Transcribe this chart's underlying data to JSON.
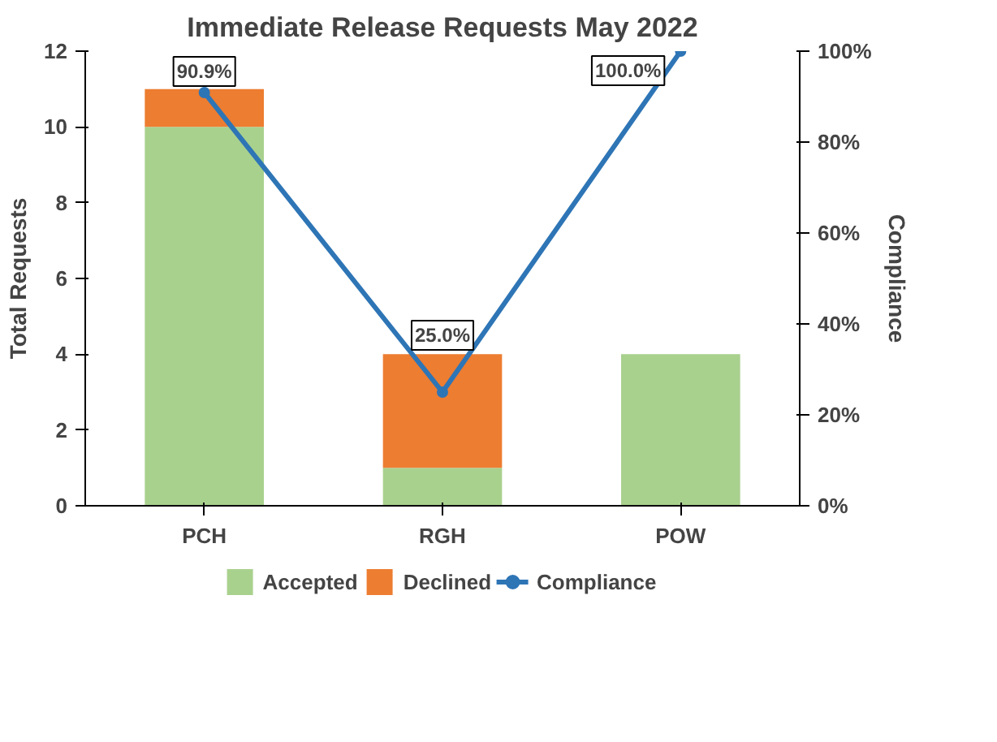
{
  "chart_data": {
    "type": "bar",
    "title": "Immediate Release Requests May 2022",
    "ylabel": "Total Requests",
    "y2label": "Compliance",
    "categories": [
      "PCH",
      "RGH",
      "POW"
    ],
    "stacked": true,
    "series": [
      {
        "name": "Accepted",
        "color": "#a9d18e",
        "values": [
          10,
          1,
          4
        ]
      },
      {
        "name": "Declined",
        "color": "#ed7d31",
        "values": [
          1,
          3,
          0
        ]
      },
      {
        "name": "Compliance",
        "type": "line",
        "axis": "y2",
        "color": "#2e75b6",
        "values": [
          90.9,
          25.0,
          100.0
        ],
        "value_labels": [
          "90.9%",
          "25.0%",
          "100.0%"
        ],
        "marker": "circle"
      }
    ],
    "ylim": [
      0,
      12
    ],
    "yticks": [
      0,
      2,
      4,
      6,
      8,
      10,
      12
    ],
    "y2lim": [
      0,
      100
    ],
    "y2ticks": [
      {
        "value": 0,
        "label": "0%"
      },
      {
        "value": 20,
        "label": "20%"
      },
      {
        "value": 40,
        "label": "40%"
      },
      {
        "value": 60,
        "label": "60%"
      },
      {
        "value": 80,
        "label": "80%"
      },
      {
        "value": 100,
        "label": "100%"
      }
    ],
    "grid": false,
    "legend": "bottom"
  }
}
